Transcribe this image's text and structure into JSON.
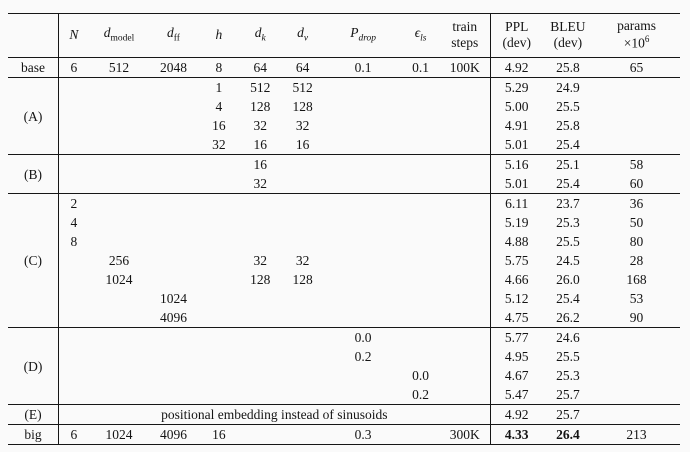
{
  "colors": {
    "page_background": "#fafafa",
    "rule_color": "#161616",
    "text_color": "#141414"
  },
  "table": {
    "columns": [
      {
        "id": "label",
        "header": {
          "type": "empty"
        }
      },
      {
        "id": "N",
        "header": {
          "type": "math",
          "base": "N"
        }
      },
      {
        "id": "d_model",
        "header": {
          "type": "math",
          "base": "d",
          "sub": "model",
          "subItalic": false
        }
      },
      {
        "id": "d_ff",
        "header": {
          "type": "math",
          "base": "d",
          "sub": "ff",
          "subItalic": false
        }
      },
      {
        "id": "h",
        "header": {
          "type": "math",
          "base": "h"
        }
      },
      {
        "id": "d_k",
        "header": {
          "type": "math",
          "base": "d",
          "sub": "k",
          "subItalic": true
        }
      },
      {
        "id": "d_v",
        "header": {
          "type": "math",
          "base": "d",
          "sub": "v",
          "subItalic": true
        }
      },
      {
        "id": "P_drop",
        "header": {
          "type": "math",
          "base": "P",
          "sub": "drop",
          "subItalic": true
        }
      },
      {
        "id": "eps_ls",
        "header": {
          "type": "math",
          "base": "ϵ",
          "sub": "ls",
          "subItalic": true
        }
      },
      {
        "id": "train_steps",
        "header": {
          "type": "twoline",
          "line1": "train",
          "line2": "steps"
        }
      },
      {
        "id": "ppl",
        "header": {
          "type": "twoline",
          "line1": "PPL",
          "line2": "(dev)"
        }
      },
      {
        "id": "bleu",
        "header": {
          "type": "twoline",
          "line1": "BLEU",
          "line2": "(dev)"
        }
      },
      {
        "id": "params",
        "header": {
          "type": "twoline",
          "line1": "params",
          "line2": "×10",
          "line2sup": "6"
        }
      }
    ],
    "sections": [
      {
        "label": "base",
        "rows": [
          {
            "cells": {
              "N": "6",
              "d_model": "512",
              "d_ff": "2048",
              "h": "8",
              "d_k": "64",
              "d_v": "64",
              "P_drop": "0.1",
              "eps_ls": "0.1",
              "train_steps": "100K",
              "ppl": "4.92",
              "bleu": "25.8",
              "params": "65"
            }
          }
        ]
      },
      {
        "label": "(A)",
        "rows": [
          {
            "cells": {
              "h": "1",
              "d_k": "512",
              "d_v": "512",
              "ppl": "5.29",
              "bleu": "24.9"
            }
          },
          {
            "cells": {
              "h": "4",
              "d_k": "128",
              "d_v": "128",
              "ppl": "5.00",
              "bleu": "25.5"
            }
          },
          {
            "cells": {
              "h": "16",
              "d_k": "32",
              "d_v": "32",
              "ppl": "4.91",
              "bleu": "25.8"
            }
          },
          {
            "cells": {
              "h": "32",
              "d_k": "16",
              "d_v": "16",
              "ppl": "5.01",
              "bleu": "25.4"
            }
          }
        ]
      },
      {
        "label": "(B)",
        "rows": [
          {
            "cells": {
              "d_k": "16",
              "ppl": "5.16",
              "bleu": "25.1",
              "params": "58"
            }
          },
          {
            "cells": {
              "d_k": "32",
              "ppl": "5.01",
              "bleu": "25.4",
              "params": "60"
            }
          }
        ]
      },
      {
        "label": "(C)",
        "rows": [
          {
            "cells": {
              "N": "2",
              "ppl": "6.11",
              "bleu": "23.7",
              "params": "36"
            }
          },
          {
            "cells": {
              "N": "4",
              "ppl": "5.19",
              "bleu": "25.3",
              "params": "50"
            }
          },
          {
            "cells": {
              "N": "8",
              "ppl": "4.88",
              "bleu": "25.5",
              "params": "80"
            }
          },
          {
            "cells": {
              "d_model": "256",
              "d_k": "32",
              "d_v": "32",
              "ppl": "5.75",
              "bleu": "24.5",
              "params": "28"
            }
          },
          {
            "cells": {
              "d_model": "1024",
              "d_k": "128",
              "d_v": "128",
              "ppl": "4.66",
              "bleu": "26.0",
              "params": "168"
            }
          },
          {
            "cells": {
              "d_ff": "1024",
              "ppl": "5.12",
              "bleu": "25.4",
              "params": "53"
            }
          },
          {
            "cells": {
              "d_ff": "4096",
              "ppl": "4.75",
              "bleu": "26.2",
              "params": "90"
            }
          }
        ]
      },
      {
        "label": "(D)",
        "rows": [
          {
            "cells": {
              "P_drop": "0.0",
              "ppl": "5.77",
              "bleu": "24.6"
            }
          },
          {
            "cells": {
              "P_drop": "0.2",
              "ppl": "4.95",
              "bleu": "25.5"
            }
          },
          {
            "cells": {
              "eps_ls": "0.0",
              "ppl": "4.67",
              "bleu": "25.3"
            }
          },
          {
            "cells": {
              "eps_ls": "0.2",
              "ppl": "5.47",
              "bleu": "25.7"
            }
          }
        ]
      },
      {
        "label": "(E)",
        "rows": [
          {
            "span_text": "positional embedding instead of sinusoids",
            "cells": {
              "ppl": "4.92",
              "bleu": "25.7"
            }
          }
        ]
      },
      {
        "label": "big",
        "rows": [
          {
            "bold": [
              "ppl",
              "bleu"
            ],
            "cells": {
              "N": "6",
              "d_model": "1024",
              "d_ff": "4096",
              "h": "16",
              "P_drop": "0.3",
              "train_steps": "300K",
              "ppl": "4.33",
              "bleu": "26.4",
              "params": "213"
            }
          }
        ]
      }
    ]
  }
}
